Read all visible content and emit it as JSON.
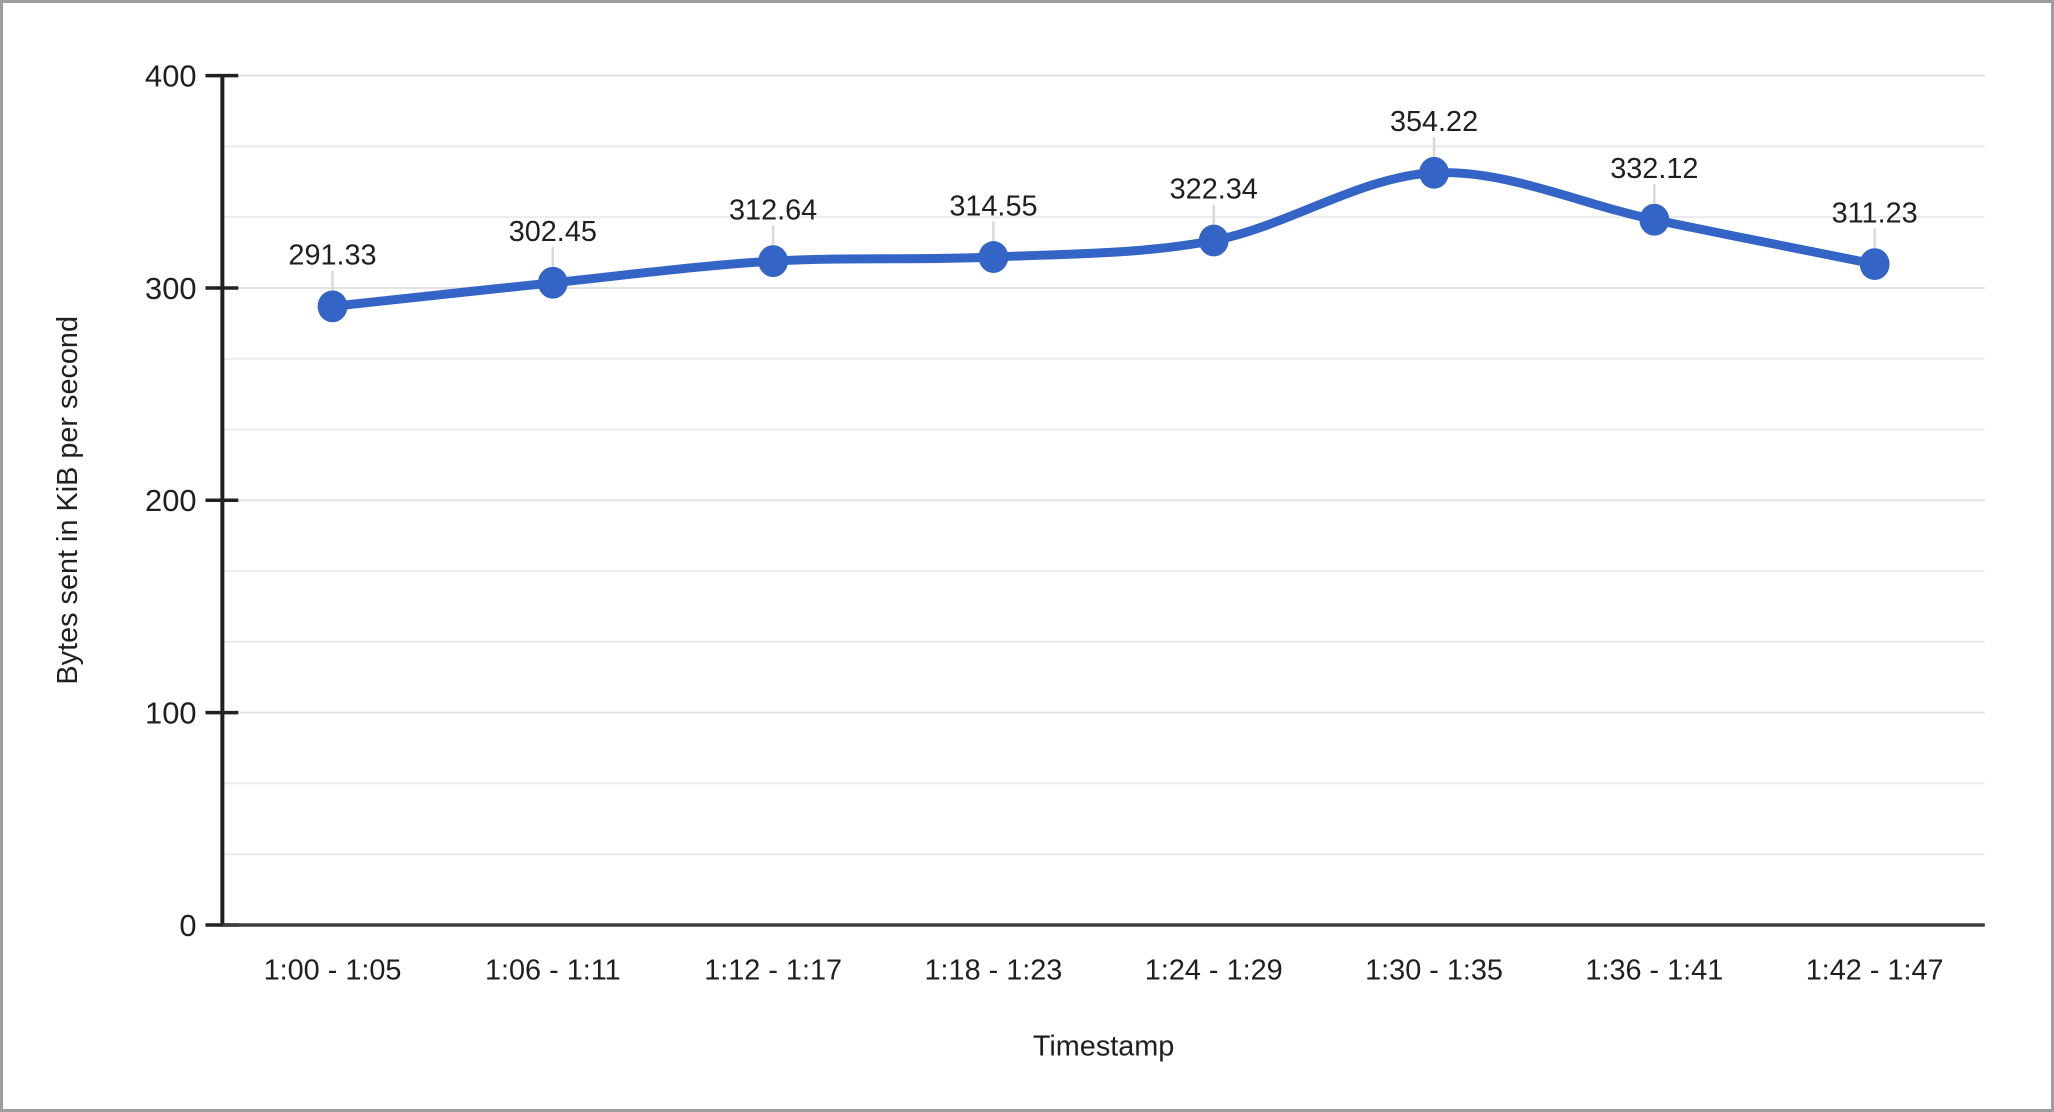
{
  "window": {
    "background": "#ffffff",
    "border_color": "#9e9e9e"
  },
  "chart_data": {
    "type": "line",
    "smooth": true,
    "title": "",
    "xlabel": "Timestamp",
    "ylabel": "Bytes sent in KiB per second",
    "categories": [
      "1:00 - 1:05",
      "1:06 - 1:11",
      "1:12 - 1:17",
      "1:18 - 1:23",
      "1:24 - 1:29",
      "1:30 - 1:35",
      "1:36 - 1:41",
      "1:42 - 1:47"
    ],
    "values": [
      291.33,
      302.45,
      312.64,
      314.55,
      322.34,
      354.22,
      332.12,
      311.23
    ],
    "point_labels": [
      "291.33",
      "302.45",
      "312.64",
      "314.55",
      "322.34",
      "354.22",
      "332.12",
      "311.23"
    ],
    "ylim": [
      0,
      400
    ],
    "yticks": [
      0,
      100,
      200,
      300,
      400
    ],
    "ytick_labels": [
      "0",
      "100",
      "200",
      "300",
      "400"
    ],
    "minor_gridlines_per_major": 3,
    "grid": true,
    "legend": "none",
    "data_labels_shown": true,
    "colors": {
      "series_line": "#3464c6",
      "marker_fill": "#3464c6",
      "data_label": "#3a67c8",
      "axis_text": "#1f1f1f",
      "gridline_major": "#e3e3e3",
      "gridline_minor": "#ebebeb",
      "leader_line": "#d9d9d9",
      "y_axis_line": "#212121",
      "x_axis_line": "#3d3d3d"
    }
  }
}
